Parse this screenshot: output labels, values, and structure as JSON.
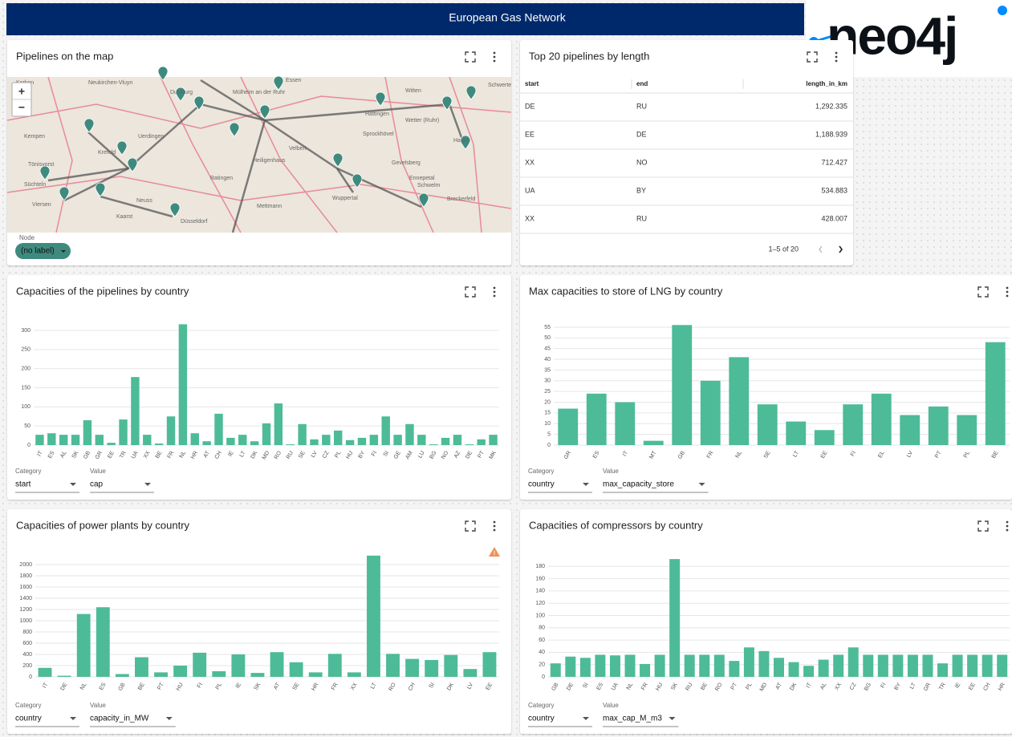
{
  "header": {
    "title": "European Gas Network",
    "logo": "neo4j"
  },
  "map_panel": {
    "title": "Pipelines on the map",
    "zoom_in": "+",
    "zoom_out": "−",
    "places": [
      "Kerken",
      "Neukirchen-Vluyn",
      "Duisburg",
      "Mülheim an der Ruhr",
      "Essen",
      "Kempen",
      "Krefeld",
      "Uerdingen",
      "Tönisvorst",
      "Ratingen",
      "Velbert",
      "Heiligenhaus",
      "Sprockhövel",
      "Hattingen",
      "Wetter (Ruhr)",
      "Hagen",
      "Gevelsberg",
      "Schwelm",
      "Ennepetal",
      "Wuppertal",
      "Breckerfeld",
      "Süchteln",
      "Viersen",
      "Mettmann",
      "Düsseldorf",
      "Kaarst",
      "Neuss",
      "Witten",
      "Schwerte"
    ],
    "legend_label": "Node",
    "legend_value": "(no label)"
  },
  "table_panel": {
    "title": "Top 20 pipelines by length",
    "columns": [
      "start",
      "end",
      "length_in_km"
    ],
    "rows": [
      [
        "DE",
        "RU",
        "1,292.335"
      ],
      [
        "EE",
        "DE",
        "1,188.939"
      ],
      [
        "XX",
        "NO",
        "712.427"
      ],
      [
        "UA",
        "BY",
        "534.883"
      ],
      [
        "XX",
        "RU",
        "428.007"
      ]
    ],
    "pagination": "1–5 of 20"
  },
  "chart_data": [
    {
      "type": "bar",
      "title": "Capacities of the pipelines by country",
      "categories": [
        "IT",
        "ES",
        "AL",
        "SK",
        "GB",
        "GR",
        "EE",
        "TR",
        "UA",
        "XX",
        "BE",
        "FR",
        "NL",
        "HR",
        "AT",
        "CH",
        "IE",
        "LT",
        "DK",
        "MD",
        "RO",
        "RU",
        "SE",
        "LV",
        "CZ",
        "PL",
        "HU",
        "BY",
        "FI",
        "SI",
        "GE",
        "AM",
        "LU",
        "BG",
        "NO",
        "AZ",
        "DE",
        "PT",
        "MK"
      ],
      "values": [
        27,
        31,
        27,
        27,
        65,
        27,
        6,
        67,
        178,
        27,
        4,
        75,
        316,
        31,
        10,
        82,
        19,
        27,
        10,
        57,
        109,
        2,
        55,
        15,
        27,
        38,
        13,
        19,
        27,
        75,
        27,
        55,
        27,
        2,
        19,
        27,
        2,
        15,
        27
      ],
      "color": "#4dbb98",
      "ylim": [
        0,
        330
      ],
      "yticks": [
        0,
        50,
        100,
        150,
        200,
        250,
        300
      ],
      "grid": true,
      "selectors": [
        {
          "label": "Category",
          "value": "start"
        },
        {
          "label": "Value",
          "value": "cap"
        }
      ]
    },
    {
      "type": "bar",
      "title": "Max capacities to store of LNG by country",
      "categories": [
        "GR",
        "ES",
        "IT",
        "MT",
        "GB",
        "FR",
        "NL",
        "SE",
        "LT",
        "EE",
        "FI",
        "EL",
        "LV",
        "PT",
        "PL",
        "BE"
      ],
      "values": [
        17,
        24,
        20,
        2,
        56,
        30,
        41,
        19,
        11,
        7,
        19,
        24,
        14,
        18,
        14,
        48
      ],
      "color": "#4dbb98",
      "ylim": [
        0,
        57
      ],
      "yticks": [
        0,
        5,
        10,
        15,
        20,
        25,
        30,
        35,
        40,
        45,
        50,
        55
      ],
      "grid": true,
      "selectors": [
        {
          "label": "Category",
          "value": "country"
        },
        {
          "label": "Value",
          "value": "max_capacity_store"
        }
      ]
    },
    {
      "type": "bar",
      "title": "Capacities of power plants by country",
      "categories": [
        "IT",
        "DE",
        "NL",
        "ES",
        "GB",
        "BE",
        "PT",
        "HU",
        "FI",
        "PL",
        "IE",
        "SK",
        "AT",
        "SE",
        "HR",
        "FR",
        "XX",
        "LT",
        "RO",
        "CH",
        "SI",
        "DK",
        "LV",
        "EE"
      ],
      "values": [
        160,
        20,
        1120,
        1240,
        50,
        350,
        80,
        200,
        430,
        100,
        400,
        70,
        440,
        260,
        80,
        410,
        80,
        2160,
        410,
        320,
        300,
        390,
        140,
        440
      ],
      "color": "#4dbb98",
      "ylim": [
        0,
        2200
      ],
      "yticks": [
        0,
        200,
        400,
        600,
        800,
        1000,
        1200,
        1400,
        1600,
        1800,
        2000
      ],
      "grid": true,
      "selectors": [
        {
          "label": "Category",
          "value": "country"
        },
        {
          "label": "Value",
          "value": "capacity_in_MW"
        }
      ]
    },
    {
      "type": "bar",
      "title": "Capacities of compressors by country",
      "categories": [
        "GB",
        "DE",
        "SI",
        "ES",
        "UA",
        "NL",
        "FR",
        "HU",
        "SK",
        "RU",
        "BE",
        "RO",
        "PT",
        "PL",
        "MD",
        "AT",
        "DK",
        "IT",
        "AL",
        "XX",
        "CZ",
        "BG",
        "FI",
        "BY",
        "LT",
        "GR",
        "TR",
        "IE",
        "EE",
        "CH",
        "HR"
      ],
      "values": [
        22,
        33,
        31,
        36,
        35,
        36,
        21,
        36,
        192,
        36,
        36,
        36,
        26,
        48,
        42,
        31,
        24,
        18,
        28,
        36,
        48,
        36,
        36,
        36,
        36,
        36,
        22,
        36,
        36,
        36,
        36
      ],
      "color": "#4dbb98",
      "ylim": [
        0,
        200
      ],
      "yticks": [
        0,
        20,
        40,
        60,
        80,
        100,
        120,
        140,
        160,
        180
      ],
      "grid": true,
      "selectors": [
        {
          "label": "Category",
          "value": "country"
        },
        {
          "label": "Value",
          "value": "max_cap_M_m3"
        }
      ]
    }
  ]
}
